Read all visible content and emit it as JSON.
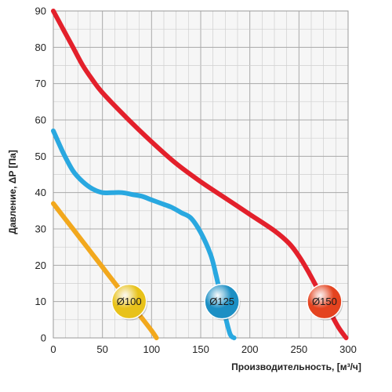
{
  "chart_data": {
    "type": "line",
    "xlabel": "Производительность, [м³/ч]",
    "ylabel": "Давление, ΔP [Па]",
    "xlim": [
      0,
      300
    ],
    "ylim": [
      0,
      90
    ],
    "x_ticks": [
      "0",
      "50",
      "100",
      "150",
      "200",
      "250",
      "300"
    ],
    "y_ticks": [
      "0",
      "10",
      "20",
      "30",
      "40",
      "50",
      "60",
      "70",
      "80",
      "90"
    ],
    "grid": true,
    "series": [
      {
        "name": "Ø100",
        "color": "#f2a81d",
        "badge_color": "#e8c21a",
        "points": [
          [
            0,
            37
          ],
          [
            10,
            33.5
          ],
          [
            20,
            30
          ],
          [
            30,
            26.5
          ],
          [
            40,
            23
          ],
          [
            50,
            19.5
          ],
          [
            60,
            16
          ],
          [
            70,
            12.5
          ],
          [
            80,
            9
          ],
          [
            90,
            5.5
          ],
          [
            100,
            2
          ],
          [
            105,
            0
          ]
        ]
      },
      {
        "name": "Ø125",
        "color": "#29a8e0",
        "badge_color": "#1c8fc4",
        "points": [
          [
            0,
            57
          ],
          [
            10,
            51
          ],
          [
            20,
            46
          ],
          [
            30,
            43
          ],
          [
            40,
            41
          ],
          [
            50,
            40
          ],
          [
            60,
            40
          ],
          [
            70,
            40
          ],
          [
            80,
            39.5
          ],
          [
            90,
            39
          ],
          [
            100,
            38
          ],
          [
            110,
            37
          ],
          [
            120,
            36
          ],
          [
            130,
            34.5
          ],
          [
            140,
            33
          ],
          [
            150,
            29
          ],
          [
            160,
            23
          ],
          [
            165,
            18
          ],
          [
            170,
            12
          ],
          [
            175,
            6
          ],
          [
            180,
            1
          ],
          [
            184,
            0
          ]
        ]
      },
      {
        "name": "Ø150",
        "color": "#e3202b",
        "badge_color": "#e4431f",
        "points": [
          [
            0,
            90
          ],
          [
            10,
            85
          ],
          [
            20,
            80
          ],
          [
            30,
            75
          ],
          [
            40,
            71
          ],
          [
            50,
            67.5
          ],
          [
            75,
            60.5
          ],
          [
            100,
            54
          ],
          [
            125,
            48
          ],
          [
            150,
            43
          ],
          [
            175,
            38.5
          ],
          [
            200,
            34
          ],
          [
            225,
            29.5
          ],
          [
            240,
            26
          ],
          [
            250,
            22.5
          ],
          [
            260,
            18
          ],
          [
            270,
            13
          ],
          [
            280,
            8
          ],
          [
            290,
            3
          ],
          [
            298,
            0
          ]
        ]
      }
    ]
  }
}
